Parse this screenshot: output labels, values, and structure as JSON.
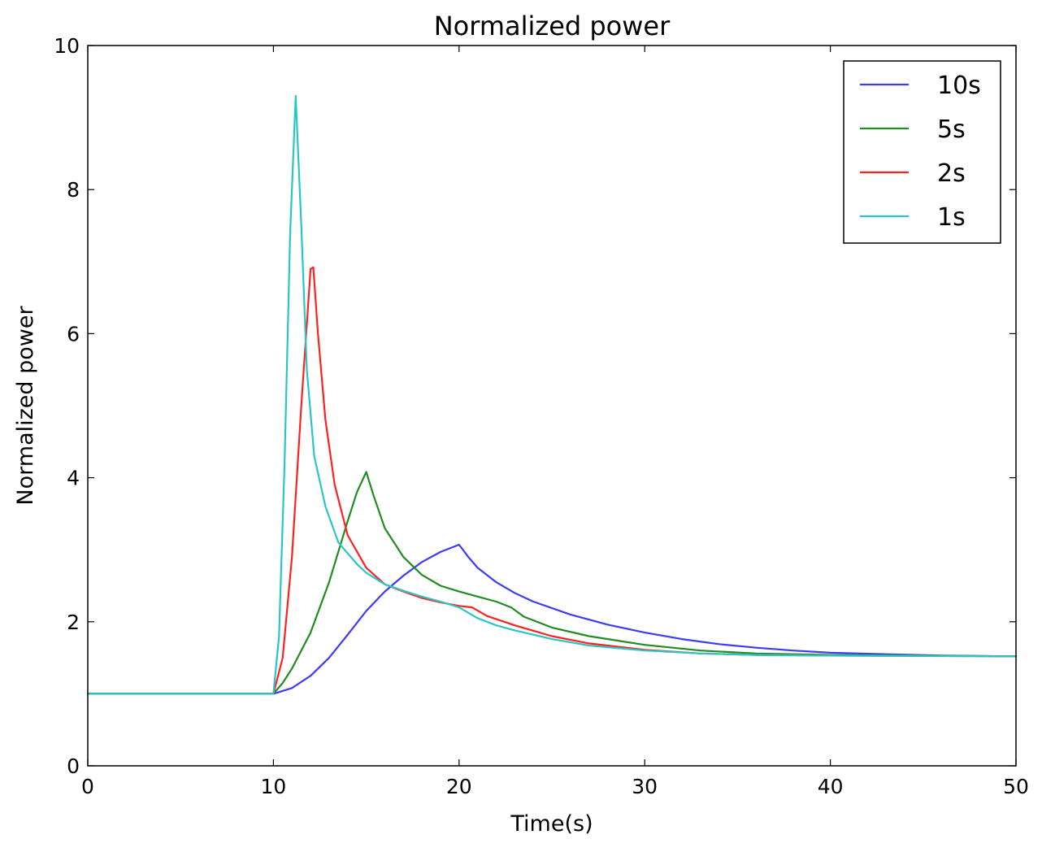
{
  "chart_data": {
    "type": "line",
    "title": "Normalized power",
    "xlabel": "Time(s)",
    "ylabel": "Normalized power",
    "xlim": [
      0,
      50
    ],
    "ylim": [
      0,
      10
    ],
    "xticks": [
      0,
      10,
      20,
      30,
      40,
      50
    ],
    "yticks": [
      0,
      2,
      4,
      6,
      8,
      10
    ],
    "grid": false,
    "legend_position": "top-right",
    "series": [
      {
        "name": "10s",
        "color": "#3b3bfa",
        "points": [
          [
            0,
            1
          ],
          [
            10,
            1
          ],
          [
            11,
            1.08
          ],
          [
            12,
            1.25
          ],
          [
            13,
            1.5
          ],
          [
            14,
            1.82
          ],
          [
            15,
            2.15
          ],
          [
            16,
            2.42
          ],
          [
            17,
            2.64
          ],
          [
            18,
            2.83
          ],
          [
            19,
            2.97
          ],
          [
            20,
            3.07
          ],
          [
            20.5,
            2.9
          ],
          [
            21,
            2.75
          ],
          [
            22,
            2.55
          ],
          [
            23,
            2.4
          ],
          [
            24,
            2.28
          ],
          [
            26,
            2.1
          ],
          [
            28,
            1.96
          ],
          [
            30,
            1.85
          ],
          [
            32,
            1.76
          ],
          [
            34,
            1.69
          ],
          [
            36,
            1.64
          ],
          [
            38,
            1.6
          ],
          [
            40,
            1.57
          ],
          [
            43,
            1.55
          ],
          [
            46,
            1.53
          ],
          [
            50,
            1.52
          ]
        ]
      },
      {
        "name": "5s",
        "color": "#228b22",
        "points": [
          [
            0,
            1
          ],
          [
            10,
            1
          ],
          [
            10.5,
            1.15
          ],
          [
            11,
            1.35
          ],
          [
            12,
            1.85
          ],
          [
            13,
            2.55
          ],
          [
            14,
            3.4
          ],
          [
            14.5,
            3.8
          ],
          [
            15,
            4.08
          ],
          [
            15.4,
            3.75
          ],
          [
            16,
            3.3
          ],
          [
            17,
            2.9
          ],
          [
            18,
            2.65
          ],
          [
            19,
            2.5
          ],
          [
            20,
            2.42
          ],
          [
            21,
            2.35
          ],
          [
            22,
            2.28
          ],
          [
            22.8,
            2.2
          ],
          [
            23.5,
            2.07
          ],
          [
            25,
            1.92
          ],
          [
            27,
            1.8
          ],
          [
            30,
            1.68
          ],
          [
            33,
            1.6
          ],
          [
            36,
            1.56
          ],
          [
            40,
            1.54
          ],
          [
            45,
            1.53
          ],
          [
            50,
            1.52
          ]
        ]
      },
      {
        "name": "2s",
        "color": "#ff2020",
        "points": [
          [
            0,
            1
          ],
          [
            10,
            1
          ],
          [
            10.5,
            1.5
          ],
          [
            11,
            2.9
          ],
          [
            11.5,
            5.0
          ],
          [
            12,
            6.9
          ],
          [
            12.15,
            6.92
          ],
          [
            12.4,
            6.0
          ],
          [
            12.8,
            4.8
          ],
          [
            13.3,
            3.9
          ],
          [
            14,
            3.2
          ],
          [
            15,
            2.75
          ],
          [
            16,
            2.52
          ],
          [
            17,
            2.42
          ],
          [
            18,
            2.33
          ],
          [
            19,
            2.27
          ],
          [
            20,
            2.22
          ],
          [
            20.7,
            2.2
          ],
          [
            21.5,
            2.08
          ],
          [
            23,
            1.95
          ],
          [
            25,
            1.8
          ],
          [
            27,
            1.7
          ],
          [
            30,
            1.61
          ],
          [
            33,
            1.56
          ],
          [
            36,
            1.54
          ],
          [
            40,
            1.53
          ],
          [
            50,
            1.52
          ]
        ]
      },
      {
        "name": "1s",
        "color": "#2ac6c6",
        "points": [
          [
            0,
            1
          ],
          [
            10,
            1
          ],
          [
            10.3,
            1.8
          ],
          [
            10.6,
            4.2
          ],
          [
            10.9,
            7.4
          ],
          [
            11.2,
            9.3
          ],
          [
            11.5,
            7.5
          ],
          [
            11.8,
            5.5
          ],
          [
            12.2,
            4.3
          ],
          [
            12.8,
            3.6
          ],
          [
            13.5,
            3.1
          ],
          [
            14.5,
            2.8
          ],
          [
            15,
            2.68
          ],
          [
            16,
            2.52
          ],
          [
            17,
            2.43
          ],
          [
            18,
            2.35
          ],
          [
            19,
            2.28
          ],
          [
            20,
            2.2
          ],
          [
            21,
            2.05
          ],
          [
            22,
            1.95
          ],
          [
            23,
            1.88
          ],
          [
            25,
            1.76
          ],
          [
            27,
            1.67
          ],
          [
            30,
            1.6
          ],
          [
            33,
            1.56
          ],
          [
            36,
            1.54
          ],
          [
            40,
            1.53
          ],
          [
            50,
            1.52
          ]
        ]
      }
    ]
  }
}
